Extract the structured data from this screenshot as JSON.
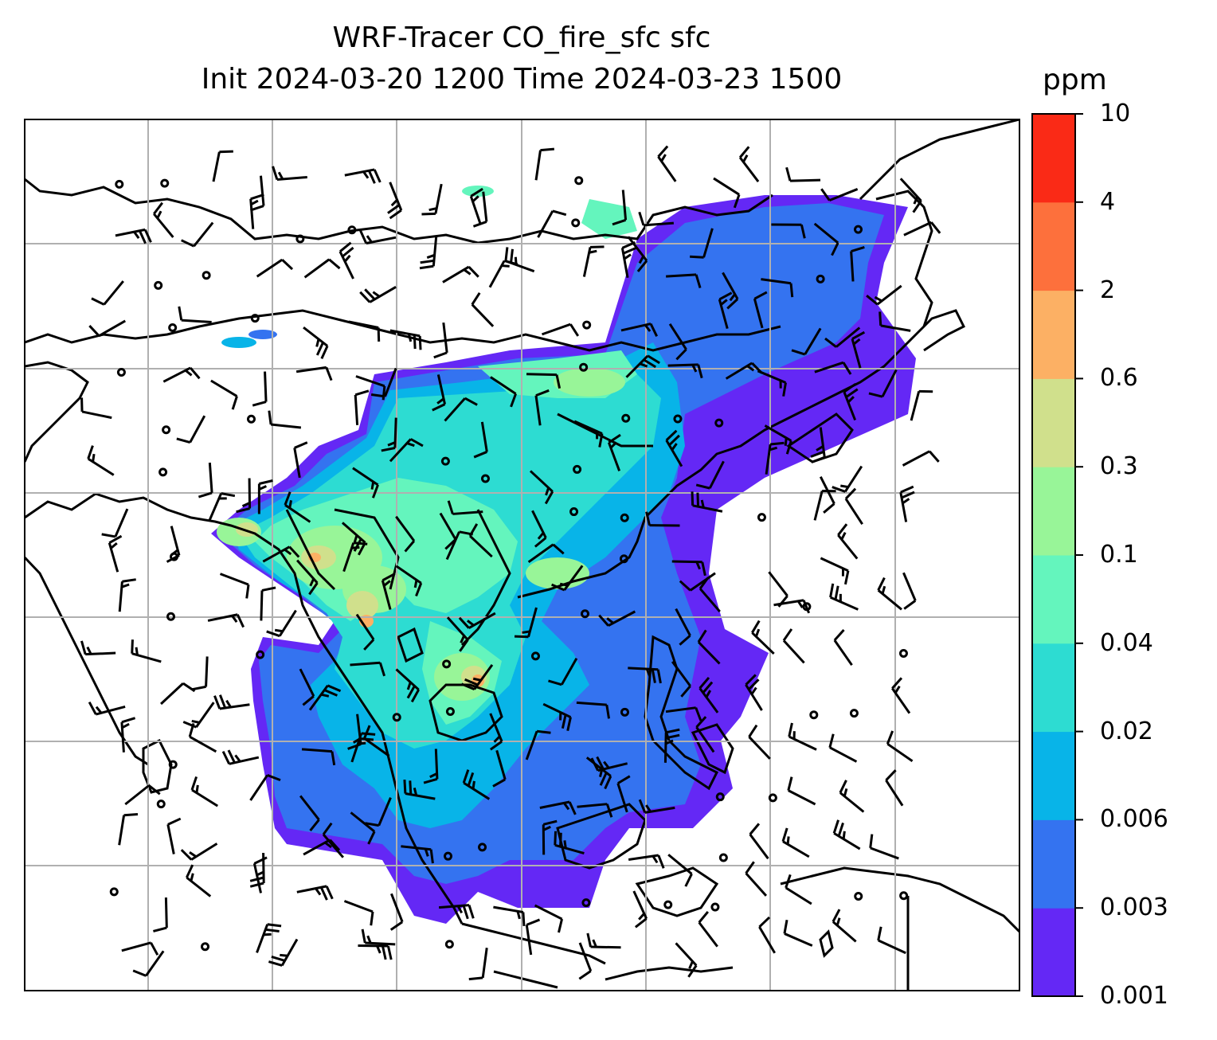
{
  "title": {
    "line1": "WRF-Tracer CO_fire_sfc sfc",
    "line2": "Init 2024-03-20 1200 Time 2024-03-23 1500"
  },
  "colorbar": {
    "unit": "ppm",
    "levels": [
      "0.001",
      "0.003",
      "0.006",
      "0.02",
      "0.04",
      "0.1",
      "0.3",
      "0.6",
      "2",
      "4",
      "10"
    ],
    "colors": [
      "#6428f5",
      "#3473f0",
      "#08b4e8",
      "#2ddcd2",
      "#64f5bd",
      "#98f598",
      "#d0e08c",
      "#fcb064",
      "#fd703c",
      "#fa2a16"
    ]
  }
}
